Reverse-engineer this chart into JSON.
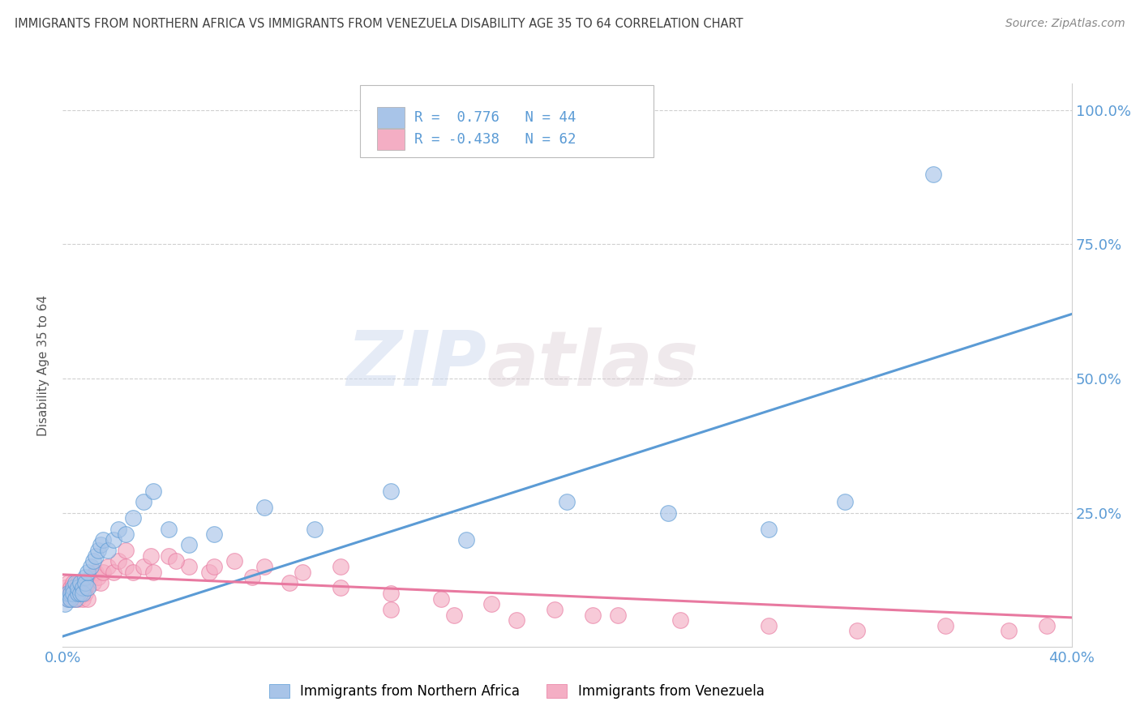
{
  "title": "IMMIGRANTS FROM NORTHERN AFRICA VS IMMIGRANTS FROM VENEZUELA DISABILITY AGE 35 TO 64 CORRELATION CHART",
  "source": "Source: ZipAtlas.com",
  "ylabel": "Disability Age 35 to 64",
  "xlim": [
    0.0,
    0.4
  ],
  "ylim": [
    0.0,
    1.05
  ],
  "color_blue": "#a8c4e8",
  "color_pink": "#f4aec4",
  "color_line_blue": "#5b9bd5",
  "color_line_pink": "#e879a0",
  "color_title": "#404040",
  "color_axis_right": "#5b9bd5",
  "watermark_zip": "ZIP",
  "watermark_atlas": "atlas",
  "series1_label": "Immigrants from Northern Africa",
  "series2_label": "Immigrants from Venezuela",
  "blue_x": [
    0.001,
    0.002,
    0.002,
    0.003,
    0.003,
    0.004,
    0.004,
    0.005,
    0.005,
    0.006,
    0.006,
    0.007,
    0.007,
    0.008,
    0.008,
    0.009,
    0.009,
    0.01,
    0.01,
    0.011,
    0.012,
    0.013,
    0.014,
    0.015,
    0.016,
    0.018,
    0.02,
    0.022,
    0.025,
    0.028,
    0.032,
    0.036,
    0.042,
    0.05,
    0.06,
    0.08,
    0.1,
    0.13,
    0.16,
    0.2,
    0.24,
    0.28,
    0.31,
    0.345
  ],
  "blue_y": [
    0.08,
    0.09,
    0.1,
    0.1,
    0.09,
    0.11,
    0.1,
    0.09,
    0.12,
    0.1,
    0.11,
    0.1,
    0.12,
    0.11,
    0.1,
    0.13,
    0.12,
    0.11,
    0.14,
    0.15,
    0.16,
    0.17,
    0.18,
    0.19,
    0.2,
    0.18,
    0.2,
    0.22,
    0.21,
    0.24,
    0.27,
    0.29,
    0.22,
    0.19,
    0.21,
    0.26,
    0.22,
    0.29,
    0.2,
    0.27,
    0.25,
    0.22,
    0.27,
    0.88
  ],
  "pink_x": [
    0.001,
    0.001,
    0.002,
    0.002,
    0.003,
    0.003,
    0.004,
    0.004,
    0.005,
    0.005,
    0.006,
    0.006,
    0.007,
    0.007,
    0.008,
    0.008,
    0.009,
    0.009,
    0.01,
    0.01,
    0.011,
    0.012,
    0.013,
    0.014,
    0.015,
    0.016,
    0.018,
    0.02,
    0.022,
    0.025,
    0.028,
    0.032,
    0.036,
    0.042,
    0.05,
    0.058,
    0.068,
    0.08,
    0.095,
    0.11,
    0.13,
    0.155,
    0.18,
    0.21,
    0.245,
    0.28,
    0.315,
    0.35,
    0.375,
    0.39,
    0.025,
    0.035,
    0.045,
    0.06,
    0.075,
    0.09,
    0.11,
    0.13,
    0.15,
    0.17,
    0.195,
    0.22
  ],
  "pink_y": [
    0.1,
    0.11,
    0.09,
    0.12,
    0.1,
    0.11,
    0.09,
    0.12,
    0.1,
    0.11,
    0.09,
    0.12,
    0.1,
    0.11,
    0.09,
    0.12,
    0.1,
    0.11,
    0.09,
    0.12,
    0.13,
    0.12,
    0.14,
    0.13,
    0.12,
    0.14,
    0.15,
    0.14,
    0.16,
    0.15,
    0.14,
    0.15,
    0.14,
    0.17,
    0.15,
    0.14,
    0.16,
    0.15,
    0.14,
    0.15,
    0.07,
    0.06,
    0.05,
    0.06,
    0.05,
    0.04,
    0.03,
    0.04,
    0.03,
    0.04,
    0.18,
    0.17,
    0.16,
    0.15,
    0.13,
    0.12,
    0.11,
    0.1,
    0.09,
    0.08,
    0.07,
    0.06
  ],
  "blue_trend_x": [
    0.0,
    0.4
  ],
  "blue_trend_y": [
    0.02,
    0.62
  ],
  "pink_trend_x": [
    0.0,
    0.4
  ],
  "pink_trend_y": [
    0.135,
    0.055
  ],
  "grid_color": "#d0d0d0",
  "background": "#ffffff",
  "legend_box_color": "#e8e8e8"
}
